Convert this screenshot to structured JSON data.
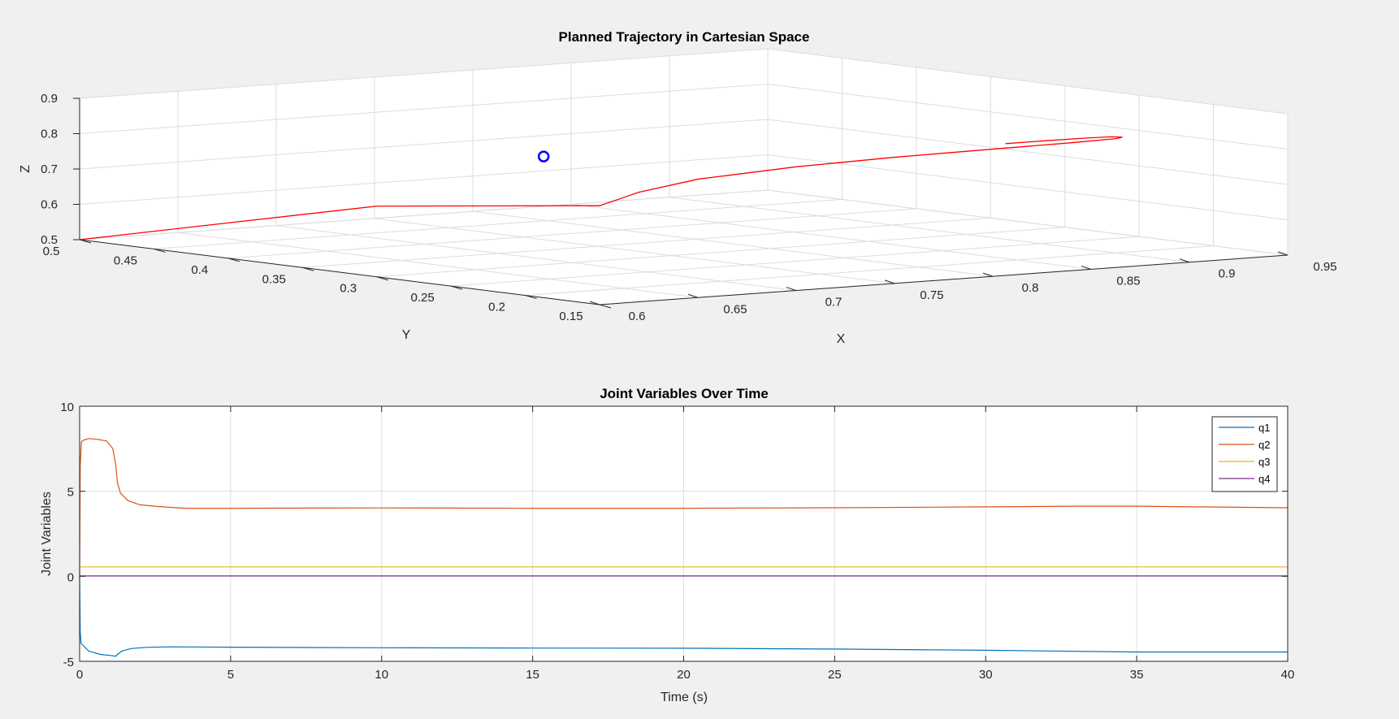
{
  "chart_data": [
    {
      "type": "line",
      "projection": "3d",
      "title": "Planned Trajectory in Cartesian Space",
      "xlabel": "X",
      "ylabel": "Y",
      "zlabel": "Z",
      "xlim": [
        0.6,
        0.95
      ],
      "ylim": [
        0.15,
        0.5
      ],
      "zlim": [
        0.5,
        0.9
      ],
      "x_ticks": [
        "0.6",
        "0.65",
        "0.7",
        "0.75",
        "0.8",
        "0.85",
        "0.9",
        "0.95"
      ],
      "y_ticks": [
        "0.15",
        "0.2",
        "0.25",
        "0.3",
        "0.35",
        "0.4",
        "0.45",
        "0.5"
      ],
      "z_ticks": [
        "0.5",
        "0.6",
        "0.7",
        "0.8",
        "0.9"
      ],
      "grid": true,
      "line_color": "#ff0000",
      "marker_color": "#0000ff",
      "series": [
        {
          "style": "line",
          "points": [
            [
              0.6,
              0.5,
              0.5
            ],
            [
              0.6,
              0.3,
              0.7
            ],
            [
              0.6,
              0.15,
              0.78
            ],
            [
              0.62,
              0.15,
              0.81
            ],
            [
              0.65,
              0.15,
              0.835
            ],
            [
              0.7,
              0.15,
              0.85
            ],
            [
              0.75,
              0.15,
              0.857
            ],
            [
              0.8,
              0.15,
              0.86
            ],
            [
              0.84,
              0.15,
              0.862
            ],
            [
              0.865,
              0.153,
              0.862
            ],
            [
              0.872,
              0.158,
              0.861
            ],
            [
              0.87,
              0.163,
              0.86
            ],
            [
              0.86,
              0.166,
              0.859
            ],
            [
              0.84,
              0.168,
              0.858
            ],
            [
              0.82,
              0.168,
              0.858
            ]
          ]
        },
        {
          "style": "marker",
          "points": [
            [
              0.7,
              0.32,
              0.79
            ]
          ]
        }
      ]
    },
    {
      "type": "line",
      "title": "Joint Variables Over Time",
      "xlabel": "Time (s)",
      "ylabel": "Joint Variables",
      "xlim": [
        0,
        40
      ],
      "ylim": [
        -5,
        10
      ],
      "x_ticks": [
        "0",
        "5",
        "10",
        "15",
        "20",
        "25",
        "30",
        "35",
        "40"
      ],
      "y_ticks": [
        "-5",
        "0",
        "5",
        "10"
      ],
      "grid": true,
      "legend_position": "top-right",
      "series": [
        {
          "name": "q1",
          "color": "#0072bd",
          "x": [
            0,
            0.02,
            0.05,
            0.3,
            0.7,
            1.0,
            1.2,
            1.25,
            1.4,
            1.7,
            2.2,
            3,
            5,
            10,
            15,
            20,
            25,
            30,
            35,
            40
          ],
          "y": [
            0,
            -3.3,
            -3.95,
            -4.4,
            -4.6,
            -4.65,
            -4.7,
            -4.6,
            -4.4,
            -4.25,
            -4.18,
            -4.15,
            -4.17,
            -4.2,
            -4.22,
            -4.23,
            -4.28,
            -4.35,
            -4.45,
            -4.45
          ]
        },
        {
          "name": "q2",
          "color": "#d95319",
          "x": [
            0,
            0.02,
            0.06,
            0.12,
            0.3,
            0.6,
            0.9,
            1.1,
            1.2,
            1.25,
            1.35,
            1.6,
            2,
            2.6,
            3.5,
            5,
            10,
            15,
            20,
            25,
            30,
            33,
            35,
            40
          ],
          "y": [
            0,
            6.5,
            7.9,
            8.0,
            8.1,
            8.05,
            7.95,
            7.5,
            6.5,
            5.5,
            4.9,
            4.45,
            4.2,
            4.1,
            4.0,
            4.0,
            4.02,
            4.0,
            4.0,
            4.03,
            4.08,
            4.12,
            4.12,
            4.03
          ]
        },
        {
          "name": "q3",
          "color": "#edb120",
          "x": [
            0,
            40
          ],
          "y": [
            0.55,
            0.55
          ]
        },
        {
          "name": "q4",
          "color": "#7e2f8e",
          "x": [
            0,
            40
          ],
          "y": [
            0.02,
            0.02
          ]
        }
      ]
    }
  ]
}
